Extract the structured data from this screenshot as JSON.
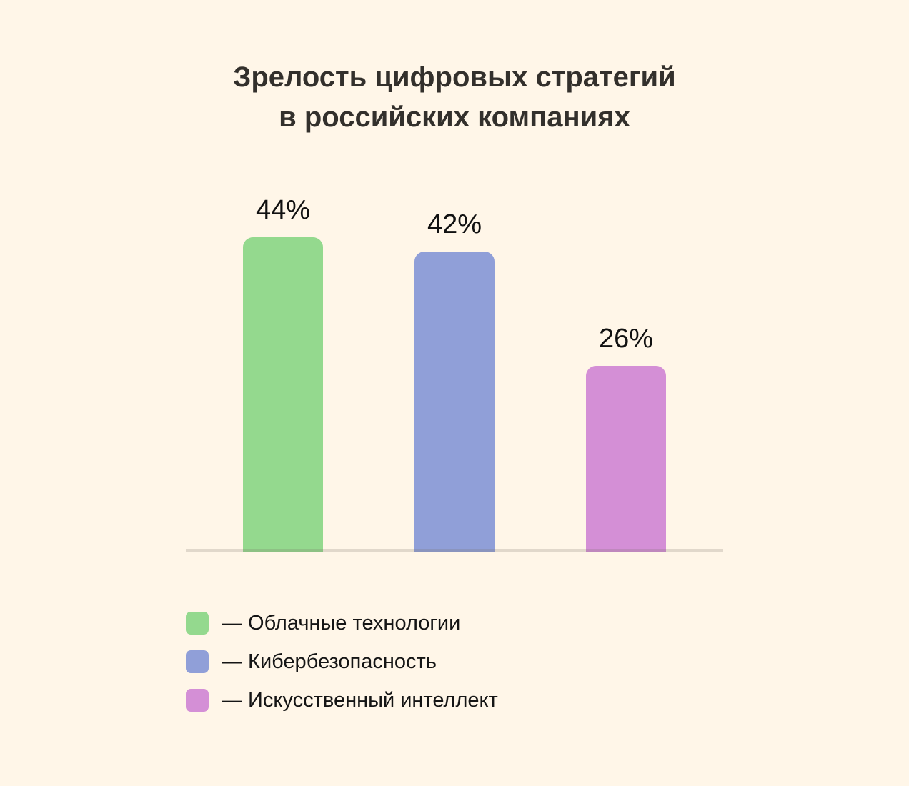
{
  "title": {
    "line1": "Зрелость цифровых стратегий",
    "line2": "в российских компаниях"
  },
  "chart_data": {
    "type": "bar",
    "title": "Зрелость цифровых стратегий в российских компаниях",
    "categories": [
      "Облачные технологии",
      "Кибербезопасность",
      "Искусственный интеллект"
    ],
    "values": [
      44,
      42,
      26
    ],
    "value_labels": [
      "44%",
      "42%",
      "26%"
    ],
    "colors": [
      "#94d98e",
      "#909fd8",
      "#d48fd6"
    ],
    "xlabel": "",
    "ylabel": "",
    "unit": "%",
    "ylim": [
      0,
      50
    ],
    "grid": false,
    "legend_position": "bottom-left"
  },
  "legend": {
    "dash": "—",
    "items": [
      {
        "label": "Облачные технологии",
        "color": "#94d98e"
      },
      {
        "label": "Кибербезопасность",
        "color": "#909fd8"
      },
      {
        "label": "Искусственный интеллект",
        "color": "#d48fd6"
      }
    ]
  },
  "theme": {
    "background": "#fff6e8",
    "title_color": "#33302c",
    "baseline_color": "#e0d8cc"
  }
}
